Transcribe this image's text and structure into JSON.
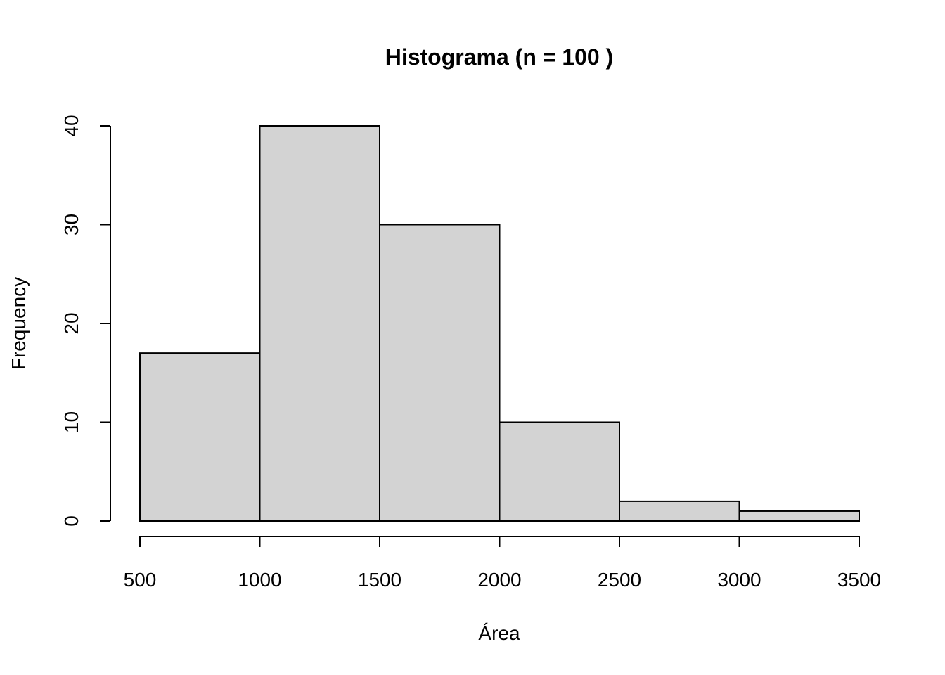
{
  "chart_data": {
    "type": "bar",
    "subtype": "histogram",
    "title": "Histograma (n = 100 )",
    "xlabel": "Área",
    "ylabel": "Frequency",
    "bins": [
      {
        "from": 500,
        "to": 1000,
        "count": 17
      },
      {
        "from": 1000,
        "to": 1500,
        "count": 40
      },
      {
        "from": 1500,
        "to": 2000,
        "count": 30
      },
      {
        "from": 2000,
        "to": 2500,
        "count": 10
      },
      {
        "from": 2500,
        "to": 3000,
        "count": 2
      },
      {
        "from": 3000,
        "to": 3500,
        "count": 1
      }
    ],
    "xlim": [
      500,
      3500
    ],
    "ylim": [
      0,
      40
    ],
    "x_ticks": [
      500,
      1000,
      1500,
      2000,
      2500,
      3000,
      3500
    ],
    "x_tick_labels": [
      "500",
      "1000",
      "1500",
      "2000",
      "2500",
      "3000",
      "3500"
    ],
    "y_ticks": [
      0,
      10,
      20,
      30,
      40
    ],
    "y_tick_labels": [
      "0",
      "10",
      "20",
      "30",
      "40"
    ],
    "grid": false,
    "legend": "none",
    "bar_fill": "#d3d3d3",
    "bar_stroke": "#000000"
  }
}
